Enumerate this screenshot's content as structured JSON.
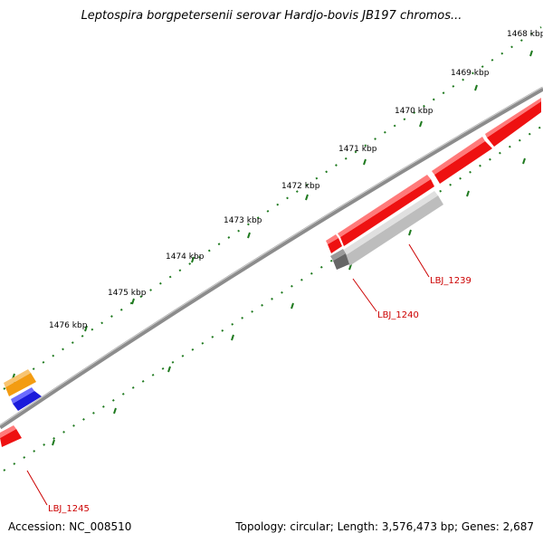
{
  "title": "Leptospira borgpetersenii serovar Hardjo-bovis JB197 chromos...",
  "footer": {
    "accession": "Accession: NC_008510",
    "info": "Topology: circular; Length: 3,576,473 bp; Genes: 2,687"
  },
  "kbp_labels": [
    "1468 kbp",
    "1469 kbp",
    "1470 kbp",
    "1471 kbp",
    "1472 kbp",
    "1473 kbp",
    "1474 kbp",
    "1475 kbp",
    "1476 kbp"
  ],
  "gene_labels": [
    "LBJ_1239",
    "LBJ_1240",
    "LBJ_1245"
  ],
  "colors": {
    "backbone": "#8c8c8c",
    "tick": "#1f7a1f",
    "gene_red": "#ee1111",
    "gene_gray": "#bdbdbd",
    "gene_dark": "#666666",
    "gene_orange": "#f39c12",
    "gene_blue": "#1a1adb",
    "label": "#cc0000"
  }
}
